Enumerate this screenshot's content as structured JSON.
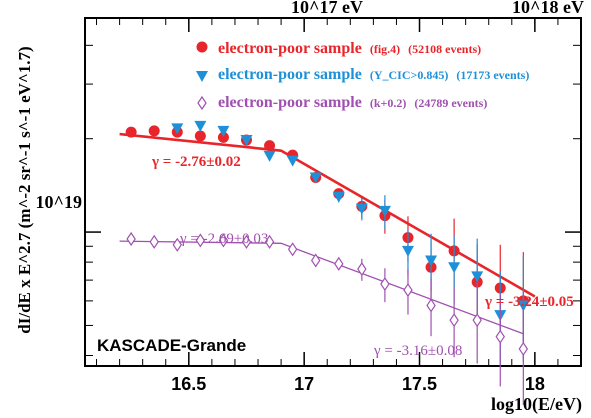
{
  "chart_data": {
    "type": "scatter",
    "title": "",
    "xlabel": "log10(E/eV)",
    "ylabel": "dI/dE x E^2.7 (m^-2 sr^-1 s^-1 eV^1.7)",
    "log_y": true,
    "xlim": [
      16.05,
      18.2
    ],
    "ylim": [
      3.7e+18,
      4.9e+19
    ],
    "x_ticks": [
      16.5,
      17.0,
      17.5,
      18.0
    ],
    "x_tick_labels": [
      "16.5",
      "17",
      "17.5",
      "18"
    ],
    "y_tick_labels": [
      {
        "value": 1e+19,
        "label": "10^19"
      }
    ],
    "top_axis_labels": [
      {
        "at": 17.0,
        "label": "10^17 eV"
      },
      {
        "at": 18.0,
        "label": "10^18 eV"
      }
    ],
    "legend_position": "top-right",
    "label_box": "KASCADE-Grande",
    "series": [
      {
        "name": "electron-poor sample",
        "tag": "(fig.4)",
        "count": "(52108 events)",
        "marker": "circle",
        "color": "#e8252a",
        "x": [
          16.25,
          16.35,
          16.45,
          16.55,
          16.65,
          16.75,
          16.85,
          16.95,
          17.05,
          17.15,
          17.25,
          17.35,
          17.45,
          17.55,
          17.65,
          17.75,
          17.85,
          17.95
        ],
        "y": [
          2.1e+19,
          2.12e+19,
          2.1e+19,
          2.04e+19,
          2.02e+19,
          1.98e+19,
          1.9e+19,
          1.77e+19,
          1.5e+19,
          1.33e+19,
          1.21e+19,
          1.13e+19,
          9.6e+18,
          7.7e+18,
          8.7e+18,
          6.9e+18,
          6.6e+18,
          6e+18
        ]
      },
      {
        "name": "electron-poor sample",
        "tag": "(Y_CIC>0.845)",
        "count": "(17173 events)",
        "marker": "triangle-down",
        "color": "#1e90d8",
        "x": [
          16.45,
          16.55,
          16.65,
          16.75,
          16.85,
          16.95,
          17.05,
          17.15,
          17.25,
          17.35,
          17.45,
          17.55,
          17.65,
          17.75,
          17.85,
          17.95
        ],
        "y": [
          2.16e+19,
          2.2e+19,
          2.12e+19,
          1.98e+19,
          1.76e+19,
          1.7e+19,
          1.5e+19,
          1.3e+19,
          1.19e+19,
          1.17e+19,
          8.7e+18,
          8.1e+18,
          7.7e+18,
          7.2e+18,
          5.4e+18,
          5.8e+18
        ]
      },
      {
        "name": "electron-poor sample",
        "tag": "(k+0.2)",
        "count": "(24789 events)",
        "marker": "diamond-open",
        "color": "#a050b0",
        "x": [
          16.25,
          16.35,
          16.45,
          16.55,
          16.65,
          16.75,
          16.85,
          16.95,
          17.05,
          17.15,
          17.25,
          17.35,
          17.45,
          17.55,
          17.65,
          17.75,
          17.85,
          17.95
        ],
        "y": [
          9.5e+18,
          9.3e+18,
          9.1e+18,
          9.4e+18,
          9.4e+18,
          9.3e+18,
          9.3e+18,
          8.8e+18,
          8.1e+18,
          7.9e+18,
          7.6e+18,
          6.8e+18,
          6.5e+18,
          5.8e+18,
          5.2e+18,
          5.2e+18,
          4.6e+18,
          4.2e+18
        ]
      }
    ],
    "fits": [
      {
        "color": "#e8252a",
        "gamma": "γ = -2.76±0.02",
        "from": [
          16.2,
          2.07e+19
        ],
        "knee": [
          16.9,
          1.83e+19
        ],
        "to": [
          18.0,
          6.2e+18
        ]
      },
      {
        "color": "#e8252a",
        "gamma": "γ = -3.24±0.05"
      },
      {
        "color": "#a050b0",
        "gamma": "γ = -2.69±0.03",
        "from": [
          16.2,
          9.35e+18
        ],
        "knee": [
          16.9,
          9.2e+18
        ],
        "to": [
          17.95,
          4.7e+18
        ]
      },
      {
        "color": "#a050b0",
        "gamma": "γ = -3.16±0.08"
      }
    ]
  }
}
